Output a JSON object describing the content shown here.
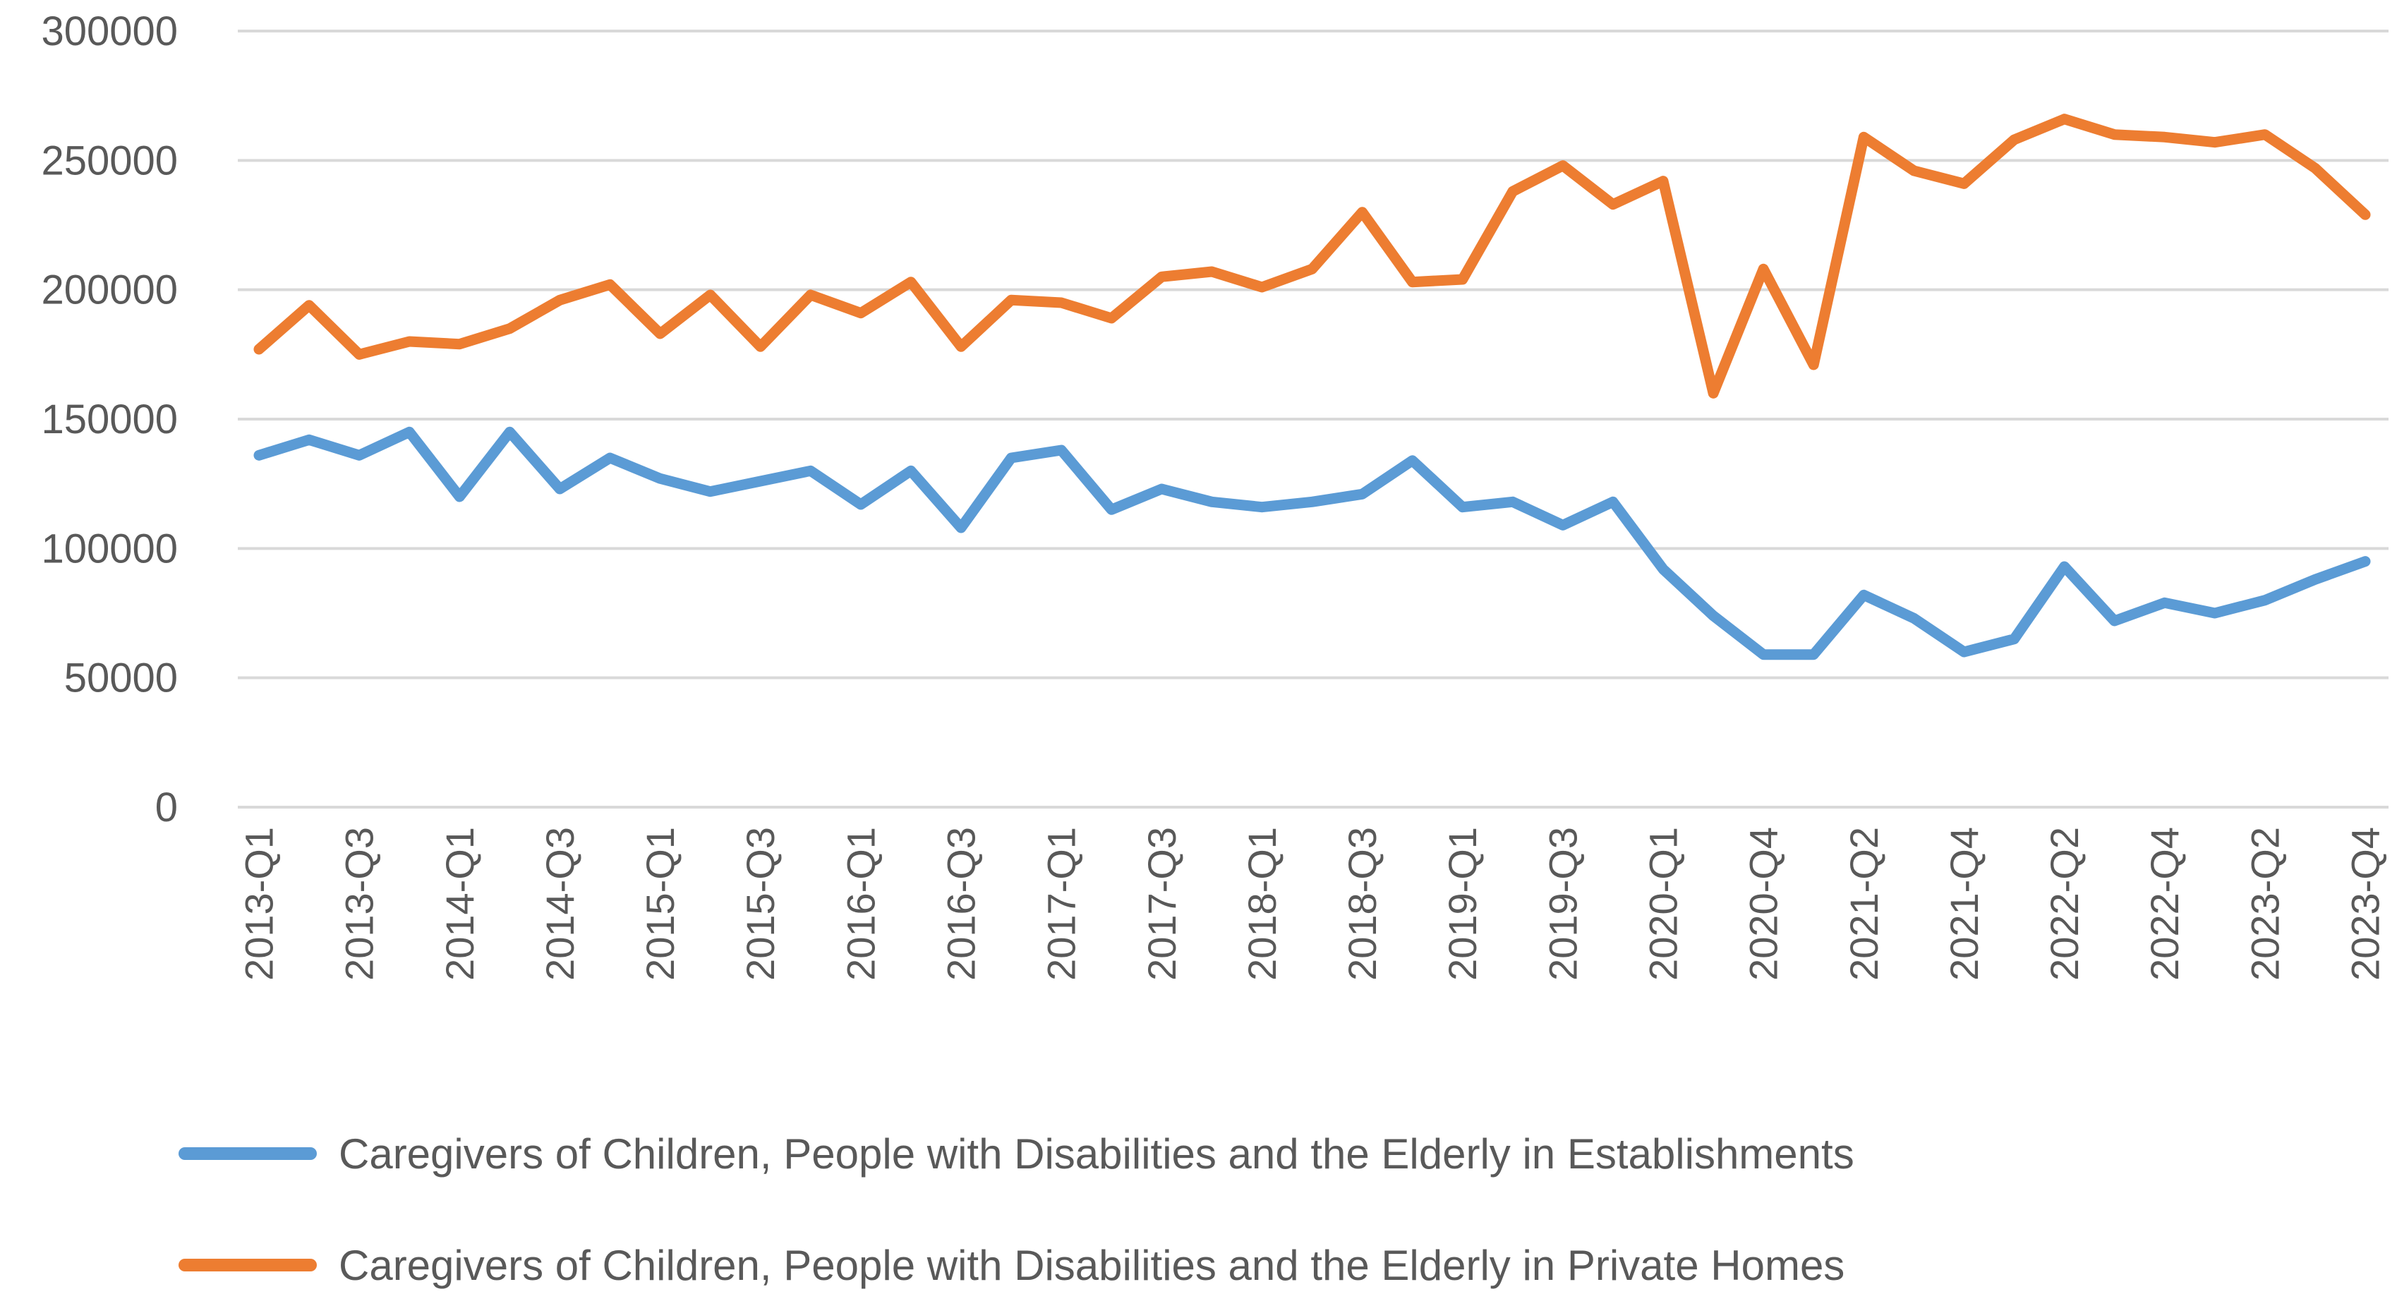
{
  "chart_data": {
    "type": "line",
    "title": "",
    "xlabel": "",
    "ylabel": "",
    "ylim": [
      0,
      300000
    ],
    "yticks": [
      0,
      50000,
      100000,
      150000,
      200000,
      250000,
      300000
    ],
    "grid": true,
    "legend_position": "bottom",
    "x": [
      "2013-Q1",
      "2013-Q2",
      "2013-Q3",
      "2013-Q4",
      "2014-Q1",
      "2014-Q2",
      "2014-Q3",
      "2014-Q4",
      "2015-Q1",
      "2015-Q2",
      "2015-Q3",
      "2015-Q4",
      "2016-Q1",
      "2016-Q2",
      "2016-Q3",
      "2016-Q4",
      "2017-Q1",
      "2017-Q2",
      "2017-Q3",
      "2017-Q4",
      "2018-Q1",
      "2018-Q2",
      "2018-Q3",
      "2018-Q4",
      "2019-Q1",
      "2019-Q2",
      "2019-Q3",
      "2019-Q4",
      "2020-Q1",
      "2020-Q2",
      "2020-Q4",
      "2021-Q1",
      "2021-Q2",
      "2021-Q3",
      "2021-Q4",
      "2022-Q1",
      "2022-Q2",
      "2022-Q3",
      "2022-Q4",
      "2023-Q1",
      "2023-Q2",
      "2023-Q3",
      "2023-Q4"
    ],
    "x_tick_labels_shown": [
      "2013-Q1",
      "2013-Q3",
      "2014-Q1",
      "2014-Q3",
      "2015-Q1",
      "2015-Q3",
      "2016-Q1",
      "2016-Q3",
      "2017-Q1",
      "2017-Q3",
      "2018-Q1",
      "2018-Q3",
      "2019-Q1",
      "2019-Q3",
      "2020-Q1",
      "2020-Q4",
      "2021-Q2",
      "2021-Q4",
      "2022-Q2",
      "2022-Q4",
      "2023-Q2",
      "2023-Q4"
    ],
    "series": [
      {
        "name": "Caregivers of Children, People with Disabilities and the Elderly in Establishments",
        "color": "#5b9bd5",
        "values": [
          136000,
          142000,
          136000,
          145000,
          120000,
          145000,
          123000,
          135000,
          127000,
          122000,
          126000,
          130000,
          117000,
          130000,
          108000,
          135000,
          138000,
          115000,
          123000,
          118000,
          116000,
          118000,
          121000,
          134000,
          116000,
          118000,
          109000,
          118000,
          92000,
          74000,
          59000,
          59000,
          82000,
          73000,
          60000,
          65000,
          93000,
          72000,
          79000,
          75000,
          80000,
          88000,
          95000
        ]
      },
      {
        "name": "Caregivers of Children, People with Disabilities and the Elderly in Private Homes",
        "color": "#ed7d31",
        "values": [
          177000,
          194000,
          175000,
          180000,
          179000,
          185000,
          196000,
          202000,
          183000,
          198000,
          178000,
          198000,
          191000,
          203000,
          178000,
          196000,
          195000,
          189000,
          205000,
          207000,
          201000,
          208000,
          230000,
          203000,
          204000,
          238000,
          248000,
          233000,
          242000,
          160000,
          208000,
          171000,
          259000,
          246000,
          241000,
          258000,
          266000,
          260000,
          259000,
          257000,
          260000,
          247000,
          229000
        ]
      }
    ]
  }
}
